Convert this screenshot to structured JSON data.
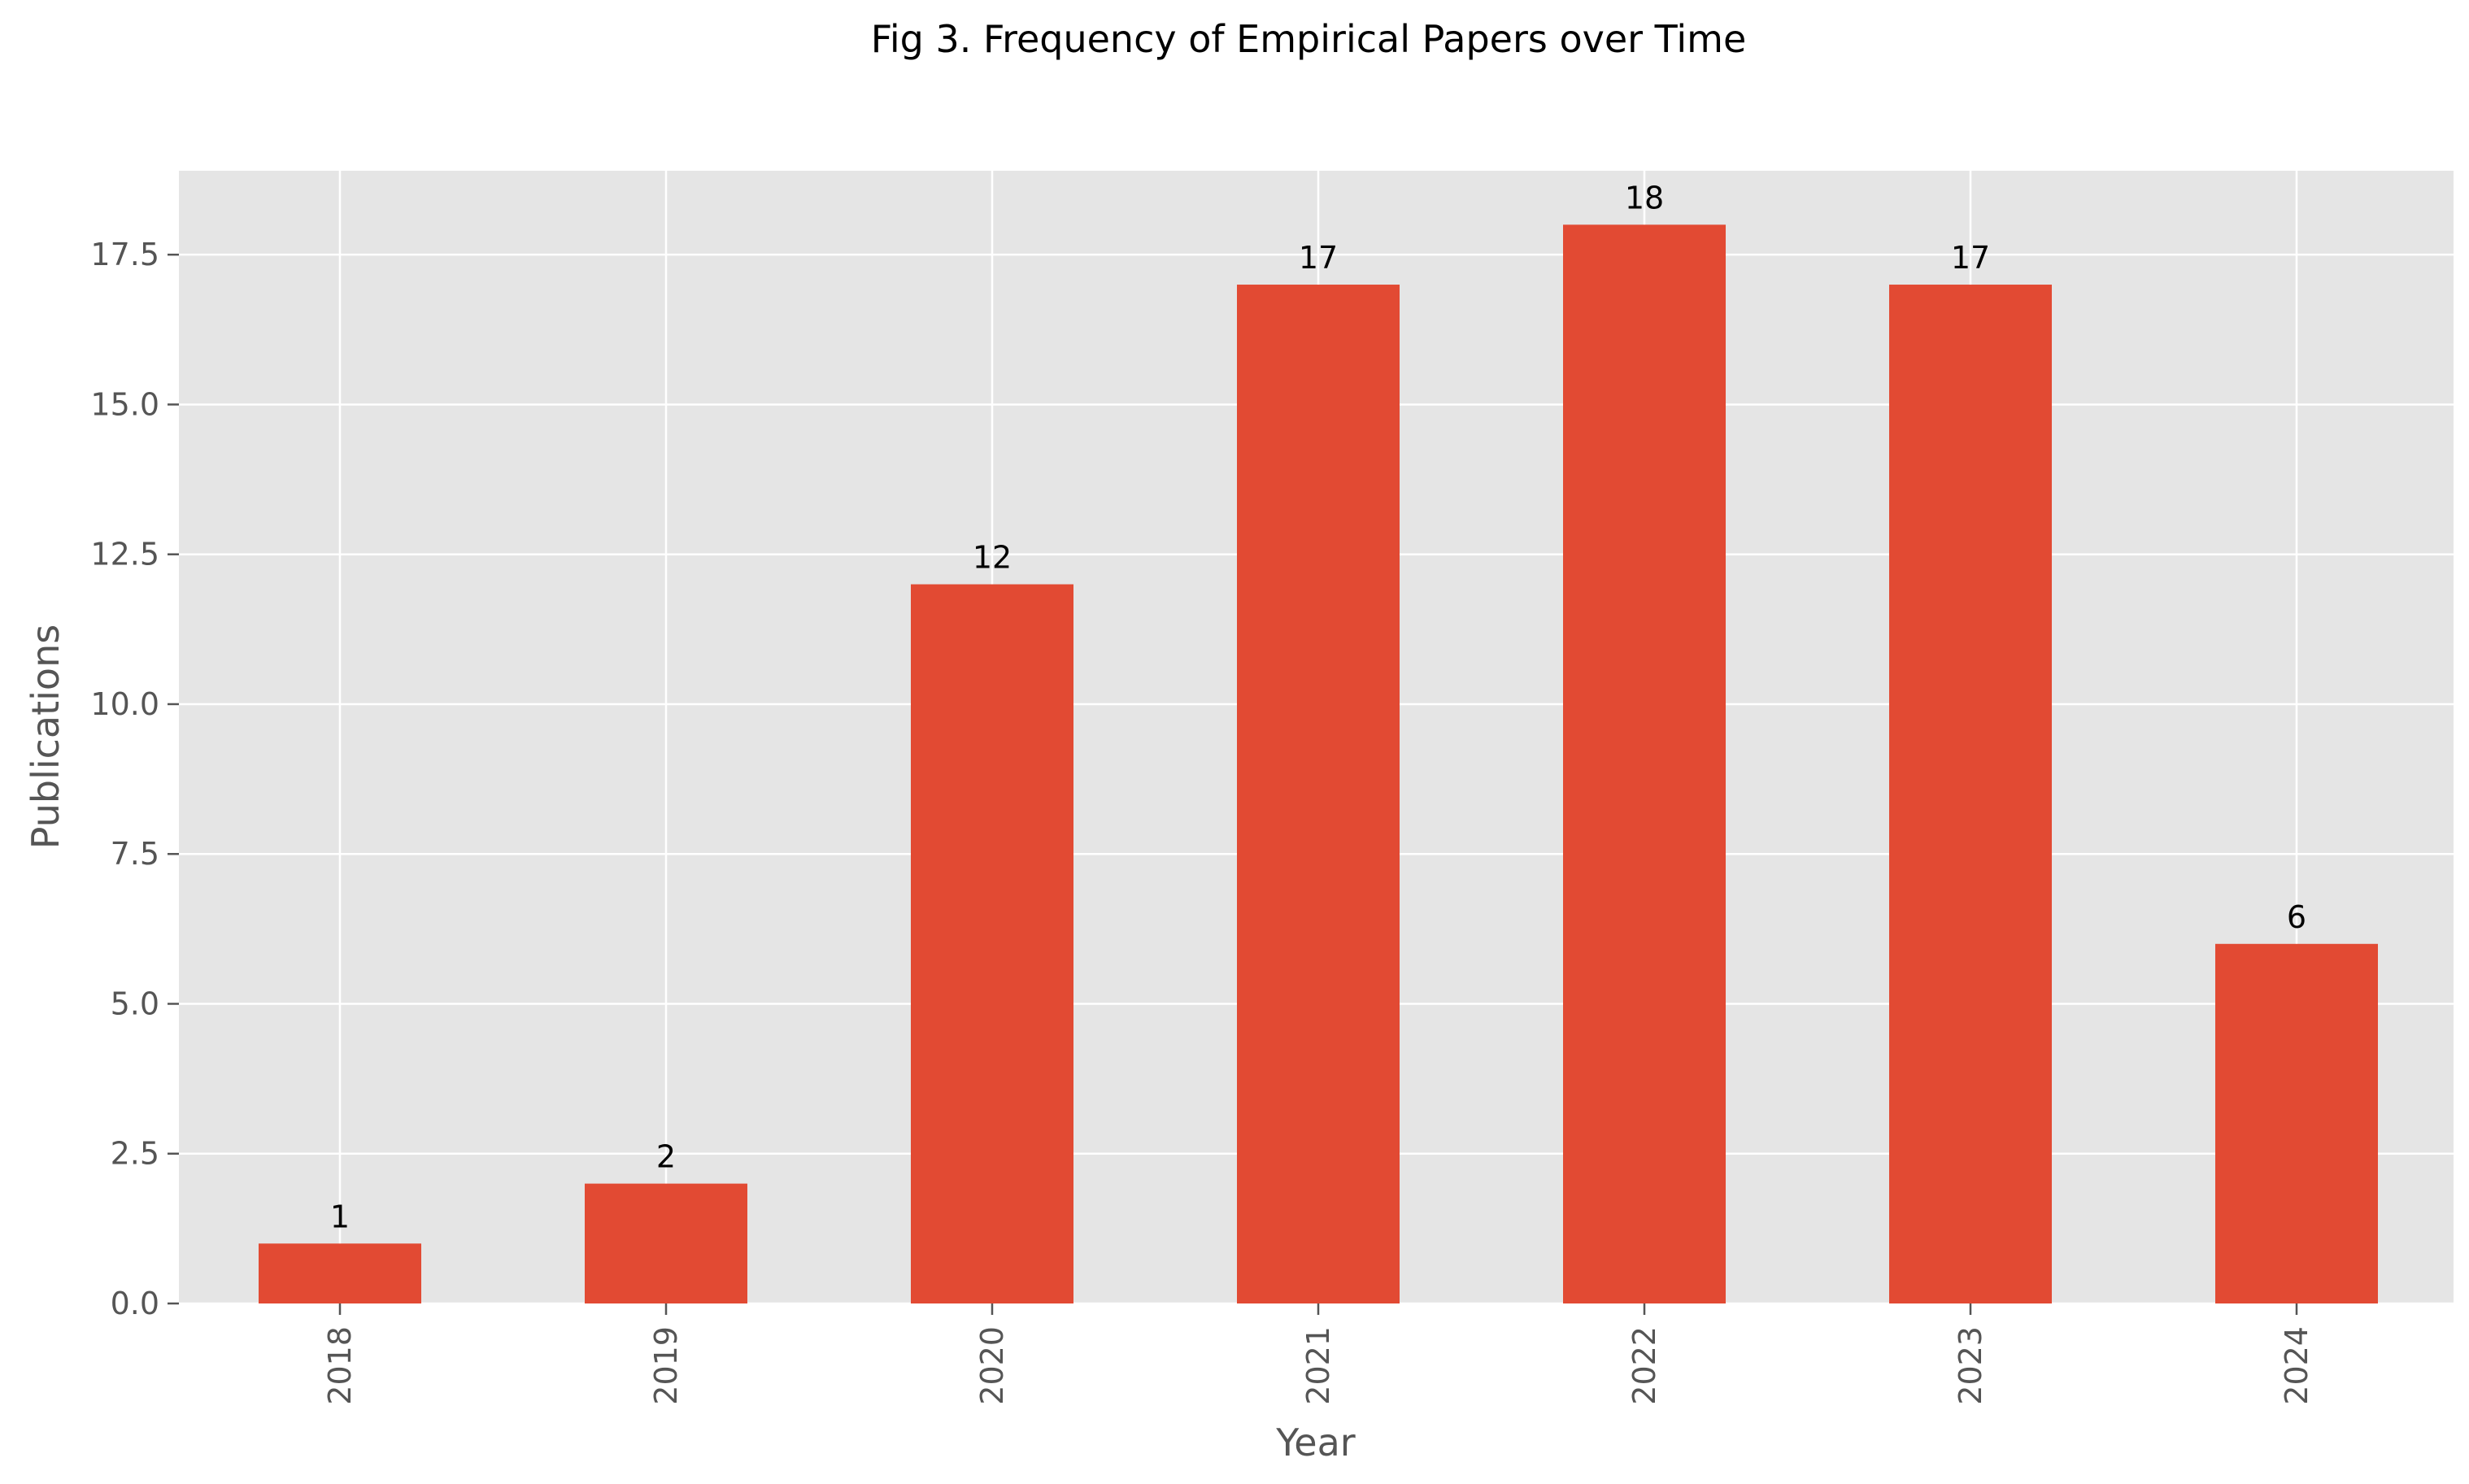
{
  "chart_data": {
    "type": "bar",
    "title": "Fig 3. Frequency of Empirical Papers over Time",
    "xlabel": "Year",
    "ylabel": "Publications",
    "categories": [
      "2018",
      "2019",
      "2020",
      "2021",
      "2022",
      "2023",
      "2024"
    ],
    "values": [
      1,
      2,
      12,
      17,
      18,
      17,
      6
    ],
    "data_labels": [
      "1",
      "2",
      "12",
      "17",
      "18",
      "17",
      "6"
    ],
    "ylim": [
      0,
      18.9
    ],
    "yticks": [
      0,
      2.5,
      5,
      7.5,
      10,
      12.5,
      15,
      17.5
    ],
    "ytick_labels": [
      "0.0",
      "2.5",
      "5.0",
      "7.5",
      "10.0",
      "12.5",
      "15.0",
      "17.5"
    ],
    "grid": true,
    "legend": "none",
    "colors": {
      "bar": "#E24A33",
      "plot_background": "#E5E5E5",
      "grid": "#FFFFFF",
      "tick": "#555555",
      "text": "#000000"
    }
  }
}
